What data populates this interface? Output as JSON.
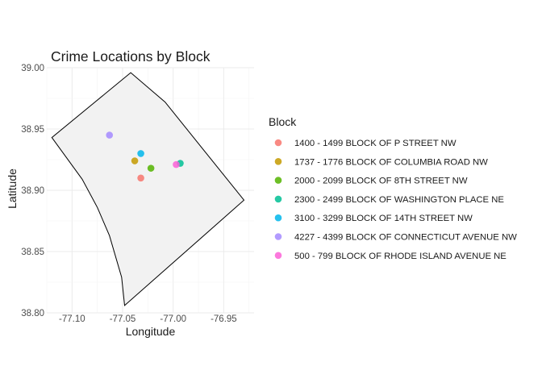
{
  "chart_data": {
    "type": "scatter",
    "title": "Crime Locations by Block",
    "xlabel": "Longitude",
    "ylabel": "Latitude",
    "xlim": [
      -77.125,
      -76.92
    ],
    "ylim": [
      38.8,
      39.0
    ],
    "x_ticks": [
      -77.1,
      -77.05,
      -77.0,
      -76.95
    ],
    "x_tick_labels": [
      "-77.10",
      "-77.05",
      "-77.00",
      "-76.95"
    ],
    "y_ticks": [
      38.8,
      38.85,
      38.9,
      38.95,
      39.0
    ],
    "y_tick_labels": [
      "38.80",
      "38.85",
      "38.90",
      "38.95",
      "39.00"
    ],
    "grid": true,
    "legend": {
      "title": "Block",
      "position": "right"
    },
    "boundary": {
      "fill": "#f2f2f2",
      "stroke": "#000000",
      "lon": [
        -77.042,
        -77.12,
        -77.09,
        -77.075,
        -77.063,
        -77.051,
        -77.048,
        -77.048,
        -76.93,
        -77.008,
        -77.042
      ],
      "lat": [
        38.996,
        38.943,
        38.909,
        38.886,
        38.863,
        38.829,
        38.806,
        38.806,
        38.892,
        38.972,
        38.996
      ]
    },
    "series": [
      {
        "name": "1400 - 1499 BLOCK OF P STREET NW",
        "color": "#F8766D",
        "x": [
          -77.032
        ],
        "y": [
          38.91
        ]
      },
      {
        "name": "1737 - 1776 BLOCK OF COLUMBIA ROAD NW",
        "color": "#C49A00",
        "x": [
          -77.038
        ],
        "y": [
          38.924
        ]
      },
      {
        "name": "2000 - 2099 BLOCK OF 8TH STREET NW",
        "color": "#53B400",
        "x": [
          -77.022
        ],
        "y": [
          38.918
        ]
      },
      {
        "name": "2300 - 2499 BLOCK OF WASHINGTON PLACE NE",
        "color": "#00C094",
        "x": [
          -76.993
        ],
        "y": [
          38.922
        ]
      },
      {
        "name": "3100 - 3299 BLOCK OF 14TH STREET NW",
        "color": "#00B6EB",
        "x": [
          -77.032
        ],
        "y": [
          38.93
        ]
      },
      {
        "name": "4227 - 4399 BLOCK OF CONNECTICUT AVENUE NW",
        "color": "#A58AFF",
        "x": [
          -77.063
        ],
        "y": [
          38.945
        ]
      },
      {
        "name": "500 - 799 BLOCK OF RHODE ISLAND AVENUE NE",
        "color": "#FB61D7",
        "x": [
          -76.997
        ],
        "y": [
          38.921
        ]
      }
    ]
  }
}
